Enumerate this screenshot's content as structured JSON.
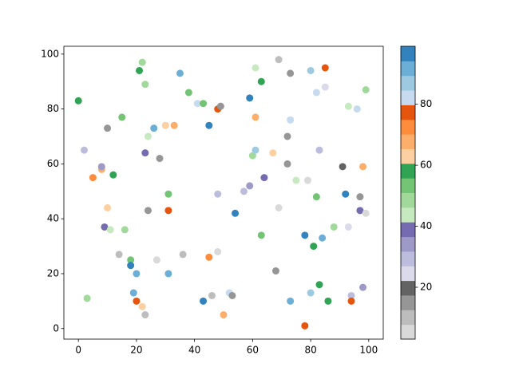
{
  "chart_data": {
    "type": "scatter",
    "x": [
      0,
      2,
      3,
      5,
      8,
      8,
      10,
      10,
      9,
      11,
      12,
      14,
      15,
      16,
      18,
      18,
      19,
      20,
      20,
      21,
      22,
      22,
      23,
      23,
      23,
      24,
      24,
      26,
      27,
      28,
      30,
      31,
      31,
      31,
      33,
      35,
      36,
      38,
      41,
      43,
      43,
      45,
      45,
      46,
      48,
      49,
      48,
      48,
      50,
      52,
      53,
      54,
      57,
      59,
      59,
      60,
      61,
      61,
      61,
      63,
      63,
      64,
      67,
      68,
      69,
      69,
      72,
      72,
      73,
      73,
      73,
      75,
      78,
      78,
      79,
      80,
      80,
      81,
      82,
      82,
      83,
      83,
      84,
      85,
      85,
      86,
      88,
      91,
      92,
      93,
      93,
      94,
      94,
      96,
      97,
      97,
      98,
      98,
      99,
      99
    ],
    "y": [
      83,
      65,
      11,
      55,
      58,
      59,
      73,
      44,
      37,
      36,
      56,
      27,
      77,
      36,
      25,
      23,
      13,
      20,
      10,
      94,
      97,
      8,
      5,
      89,
      64,
      70,
      43,
      73,
      25,
      62,
      74,
      49,
      43,
      20,
      74,
      93,
      27,
      86,
      82,
      82,
      10,
      74,
      26,
      12,
      80,
      81,
      49,
      28,
      5,
      13,
      12,
      42,
      50,
      52,
      84,
      63,
      65,
      95,
      77,
      90,
      34,
      55,
      64,
      21,
      98,
      44,
      70,
      60,
      93,
      76,
      10,
      54,
      34,
      1,
      54,
      94,
      13,
      30,
      48,
      86,
      65,
      16,
      33,
      95,
      88,
      10,
      37,
      59,
      49,
      37,
      81,
      12,
      10,
      80,
      48,
      43,
      59,
      15,
      87,
      42
    ],
    "c": [
      58.2,
      29.4,
      48.6,
      72.6,
      67.8,
      34.2,
      15,
      63,
      39,
      43.8,
      58.2,
      10.2,
      53.4,
      48.6,
      53.4,
      96.6,
      91.8,
      91.8,
      77.4,
      58.2,
      48.6,
      63,
      10.2,
      48.6,
      39,
      43.8,
      15,
      91.8,
      5.4,
      15,
      63,
      53.4,
      77.4,
      91.8,
      67.8,
      91.8,
      10.2,
      53.4,
      82.2,
      53.4,
      96.6,
      96.6,
      72.6,
      10.2,
      77.4,
      15,
      29.4,
      5.4,
      67.8,
      82.2,
      15,
      96.6,
      29.4,
      34.2,
      96.6,
      48.6,
      87,
      43.8,
      67.8,
      58.2,
      53.4,
      39,
      63,
      15,
      10.2,
      5.4,
      15,
      15,
      15,
      82.2,
      91.8,
      43.8,
      96.6,
      77.4,
      5.4,
      87,
      87,
      58.2,
      53.4,
      82.2,
      29.4,
      58.2,
      91.8,
      77.4,
      24.6,
      58.2,
      48.6,
      19.8,
      96.6,
      24.6,
      43.8,
      29.4,
      77.4,
      82.2,
      15,
      39,
      67.8,
      34.2,
      48.6,
      5.4
    ],
    "colormap": [
      "#d9d9d9",
      "#bdbdbd",
      "#969696",
      "#636363",
      "#dadaeb",
      "#bcbddc",
      "#9e9ac8",
      "#756bb1",
      "#c7e9c0",
      "#a1d99b",
      "#74c476",
      "#31a354",
      "#fdd0a2",
      "#fdae6b",
      "#fd8d3c",
      "#e6550d",
      "#c6dbef",
      "#9ecae1",
      "#6baed6",
      "#3182bd"
    ],
    "clim": [
      3,
      99
    ],
    "cticks": [
      20,
      40,
      60,
      80
    ],
    "xlim": [
      -5,
      105
    ],
    "ylim": [
      -3.85,
      102.85
    ],
    "xticks": [
      0,
      20,
      40,
      60,
      80,
      100
    ],
    "yticks": [
      0,
      20,
      40,
      60,
      80,
      100
    ]
  }
}
